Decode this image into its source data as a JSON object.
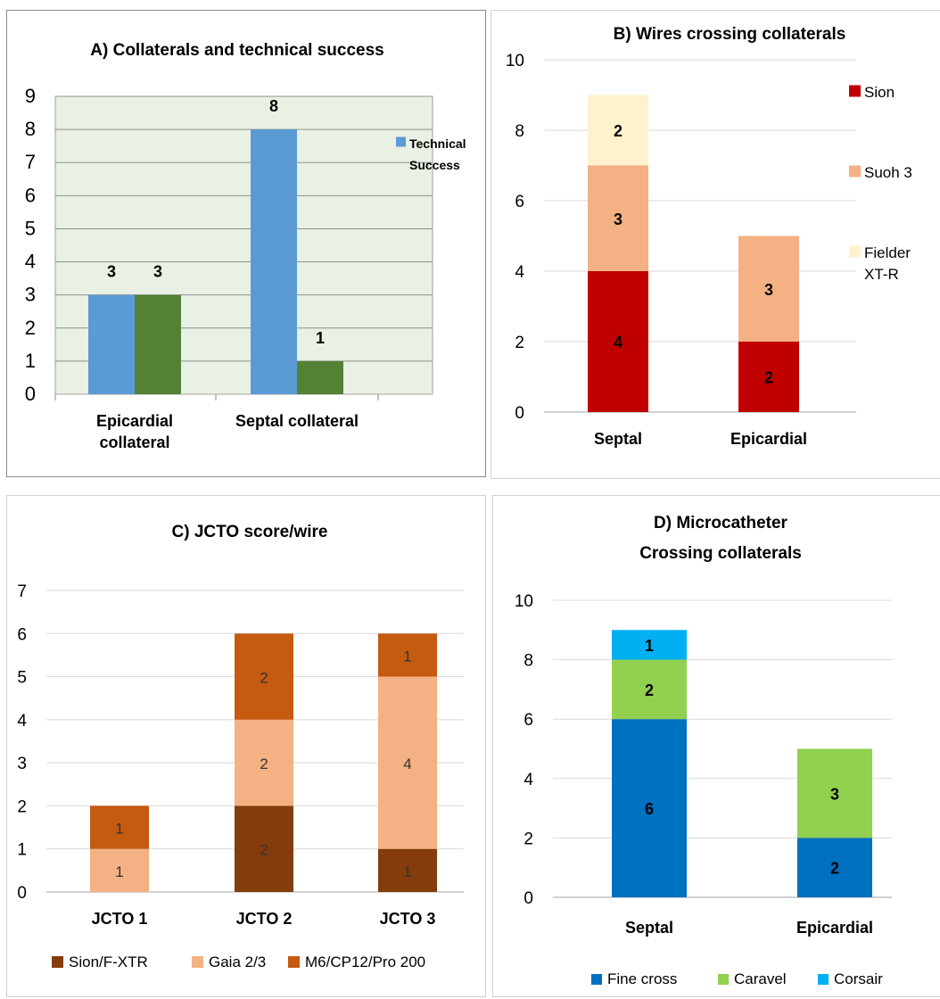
{
  "chart_data": [
    {
      "id": "A",
      "type": "bar",
      "title": "A) Collaterals and technical success",
      "categories": [
        "Epicardial collateral",
        "Septal collateral"
      ],
      "series": [
        {
          "name": "Technical Success",
          "values": [
            3,
            8
          ],
          "color": "#5b9bd5"
        },
        {
          "name": "",
          "values": [
            3,
            1
          ],
          "color": "#548235"
        }
      ],
      "ylim": [
        0,
        9
      ],
      "yticks": [
        0,
        1,
        2,
        3,
        4,
        5,
        6,
        7,
        8,
        9
      ],
      "plot_background": "#e9f0e4",
      "grid": true,
      "legend_position": "right"
    },
    {
      "id": "B",
      "type": "bar",
      "stacked": true,
      "title": "B) Wires crossing collaterals",
      "categories": [
        "Septal",
        "Epicardial"
      ],
      "series": [
        {
          "name": "Sion",
          "values": [
            4,
            2
          ],
          "color": "#c00000"
        },
        {
          "name": "Suoh 3",
          "values": [
            3,
            3
          ],
          "color": "#f4b183"
        },
        {
          "name": "Fielder XT-R",
          "values": [
            2,
            0
          ],
          "color": "#fff2cc"
        }
      ],
      "ylim": [
        0,
        10
      ],
      "yticks": [
        0,
        2,
        4,
        6,
        8,
        10
      ],
      "grid": true,
      "legend_position": "right"
    },
    {
      "id": "C",
      "type": "bar",
      "stacked": true,
      "title": "C) JCTO score/wire",
      "categories": [
        "JCTO 1",
        "JCTO 2",
        "JCTO 3"
      ],
      "series": [
        {
          "name": "Sion/F-XTR",
          "values": [
            0,
            2,
            1
          ],
          "color": "#843c0c"
        },
        {
          "name": "Gaia 2/3",
          "values": [
            1,
            2,
            4
          ],
          "color": "#f4b183"
        },
        {
          "name": "M6/CP12/Pro 200",
          "values": [
            1,
            2,
            1
          ],
          "color": "#c55a11"
        }
      ],
      "ylim": [
        0,
        7
      ],
      "yticks": [
        0,
        1,
        2,
        3,
        4,
        5,
        6,
        7
      ],
      "grid": true,
      "legend_position": "bottom"
    },
    {
      "id": "D",
      "type": "bar",
      "stacked": true,
      "title": "D) Microcatheter",
      "subtitle": "Crossing collaterals",
      "categories": [
        "Septal",
        "Epicardial"
      ],
      "series": [
        {
          "name": "Fine cross",
          "values": [
            6,
            2
          ],
          "color": "#0070c0"
        },
        {
          "name": "Caravel",
          "values": [
            2,
            3
          ],
          "color": "#92d050"
        },
        {
          "name": "Corsair",
          "values": [
            1,
            0
          ],
          "color": "#00b0f0"
        }
      ],
      "ylim": [
        0,
        10
      ],
      "yticks": [
        0,
        2,
        4,
        6,
        8,
        10
      ],
      "grid": true,
      "legend_position": "bottom"
    }
  ]
}
